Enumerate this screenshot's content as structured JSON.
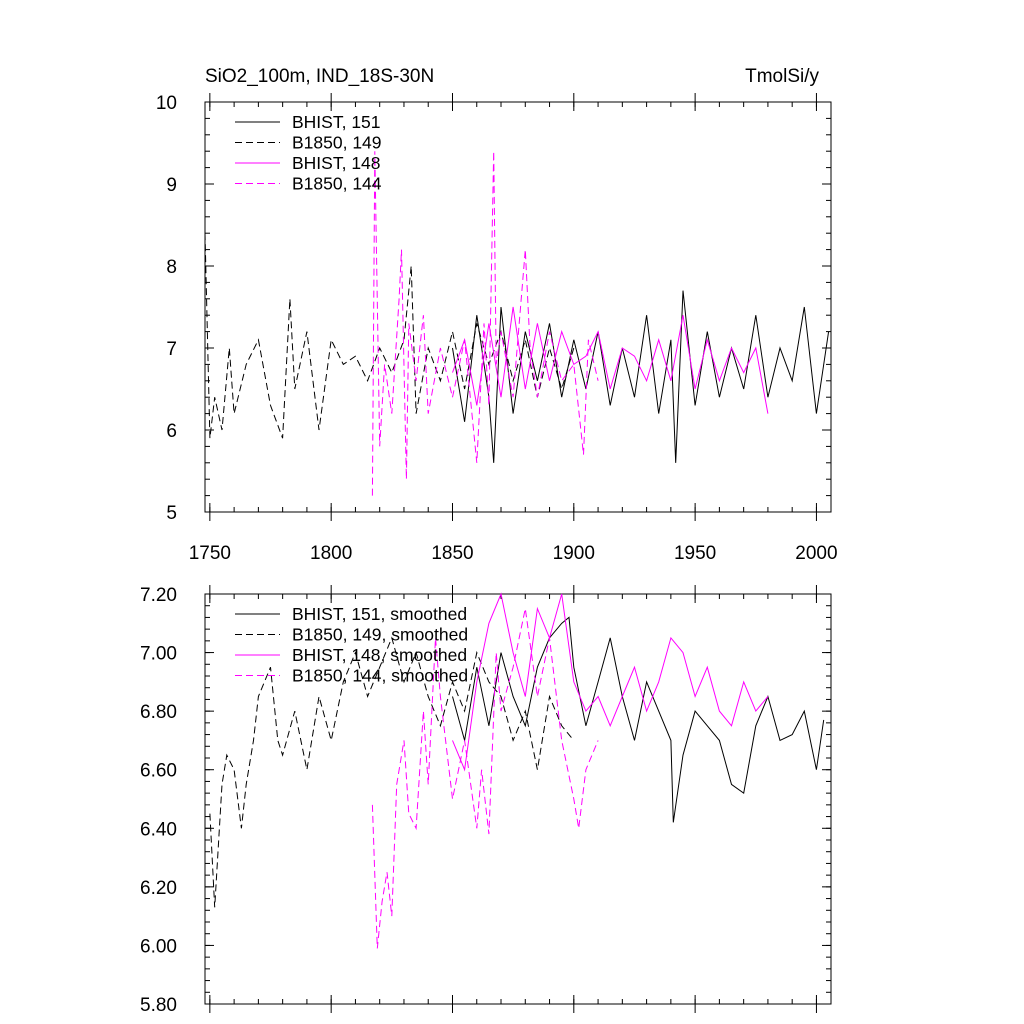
{
  "chart_data": [
    {
      "type": "line",
      "title_left": "SiO2_100m, IND_18S-30N",
      "title_right": "TmolSi/y",
      "xlabel": "",
      "ylabel": "",
      "xlim": [
        1748,
        2006
      ],
      "ylim": [
        5,
        10
      ],
      "xticks": [
        1750,
        1800,
        1850,
        1900,
        1950,
        2000
      ],
      "xtick_labels": [
        "1750",
        "1800",
        "1850",
        "1900",
        "1950",
        "2000"
      ],
      "yticks": [
        5,
        6,
        7,
        8,
        9,
        10
      ],
      "ytick_labels": [
        "5",
        "6",
        "7",
        "8",
        "9",
        "10"
      ],
      "legend_position": "top-left",
      "series": [
        {
          "name": "BHIST, 151",
          "color": "#000000",
          "dash": "solid",
          "x": [
            1850,
            1855,
            1860,
            1865,
            1867,
            1870,
            1875,
            1880,
            1885,
            1890,
            1895,
            1900,
            1905,
            1910,
            1915,
            1920,
            1925,
            1930,
            1935,
            1940,
            1942,
            1945,
            1950,
            1955,
            1960,
            1965,
            1970,
            1975,
            1980,
            1985,
            1990,
            1995,
            2000,
            2005
          ],
          "y": [
            7.0,
            6.1,
            7.4,
            6.4,
            5.6,
            7.5,
            6.2,
            7.2,
            6.6,
            7.3,
            6.4,
            7.1,
            6.5,
            7.2,
            6.3,
            7.0,
            6.4,
            7.4,
            6.2,
            7.1,
            5.6,
            7.7,
            6.3,
            7.2,
            6.4,
            7.0,
            6.5,
            7.4,
            6.4,
            7.0,
            6.6,
            7.5,
            6.2,
            7.2
          ]
        },
        {
          "name": "B1850, 149",
          "color": "#000000",
          "dash": "dashed",
          "x": [
            1748,
            1750,
            1752,
            1755,
            1758,
            1760,
            1765,
            1770,
            1775,
            1780,
            1783,
            1785,
            1790,
            1795,
            1800,
            1805,
            1810,
            1815,
            1820,
            1825,
            1830,
            1833,
            1835,
            1840,
            1845,
            1850,
            1855,
            1860,
            1865,
            1870,
            1875,
            1880,
            1885,
            1890,
            1895,
            1900
          ],
          "y": [
            8.4,
            5.9,
            6.4,
            6.0,
            7.0,
            6.2,
            6.8,
            7.1,
            6.3,
            5.9,
            7.6,
            6.5,
            7.2,
            6.0,
            7.1,
            6.8,
            6.9,
            6.6,
            7.0,
            6.7,
            7.1,
            8.0,
            6.2,
            7.0,
            6.6,
            7.2,
            6.5,
            7.3,
            6.8,
            7.2,
            6.6,
            7.1,
            6.4,
            7.0,
            6.5,
            7.0
          ]
        },
        {
          "name": "BHIST, 148",
          "color": "#ff00ff",
          "dash": "solid",
          "x": [
            1850,
            1855,
            1860,
            1865,
            1870,
            1875,
            1880,
            1885,
            1890,
            1895,
            1900,
            1905,
            1910,
            1915,
            1920,
            1925,
            1930,
            1935,
            1940,
            1945,
            1950,
            1955,
            1960,
            1965,
            1970,
            1975,
            1980
          ],
          "y": [
            6.7,
            7.1,
            6.3,
            7.3,
            6.4,
            7.5,
            6.5,
            7.3,
            6.6,
            7.2,
            6.8,
            6.9,
            7.2,
            6.5,
            7.0,
            6.9,
            6.6,
            7.1,
            6.6,
            7.4,
            6.5,
            7.1,
            6.6,
            7.0,
            6.7,
            7.0,
            6.2
          ]
        },
        {
          "name": "B1850, 144",
          "color": "#ff00ff",
          "dash": "dashed",
          "x": [
            1817,
            1818,
            1820,
            1822,
            1825,
            1828,
            1829,
            1831,
            1832,
            1835,
            1838,
            1840,
            1845,
            1850,
            1855,
            1860,
            1863,
            1865,
            1867,
            1868,
            1870,
            1875,
            1880,
            1882,
            1885,
            1890,
            1895,
            1900,
            1904,
            1906,
            1910
          ],
          "y": [
            5.2,
            9.4,
            5.8,
            6.8,
            6.2,
            7.6,
            8.2,
            5.4,
            7.3,
            6.6,
            7.4,
            6.2,
            7.0,
            6.4,
            7.1,
            5.6,
            7.3,
            6.3,
            9.4,
            6.8,
            7.2,
            6.4,
            8.2,
            7.0,
            6.4,
            7.2,
            6.6,
            6.8,
            5.7,
            7.1,
            6.6
          ]
        }
      ]
    },
    {
      "type": "line",
      "title_left": "",
      "title_right": "",
      "xlabel": "",
      "ylabel": "",
      "xlim": [
        1748,
        2006
      ],
      "ylim": [
        5.8,
        7.2
      ],
      "xticks": [
        1750,
        1800,
        1850,
        1900,
        1950,
        2000
      ],
      "yticks": [
        5.8,
        6.0,
        6.2,
        6.4,
        6.6,
        6.8,
        7.0,
        7.2
      ],
      "ytick_labels": [
        "5.80",
        "6.00",
        "6.20",
        "6.40",
        "6.60",
        "6.80",
        "7.00",
        "7.20"
      ],
      "legend_position": "top-left",
      "series": [
        {
          "name": "BHIST, 151, smoothed",
          "color": "#000000",
          "dash": "solid",
          "x": [
            1850,
            1855,
            1860,
            1865,
            1870,
            1875,
            1880,
            1885,
            1890,
            1895,
            1898,
            1900,
            1905,
            1910,
            1915,
            1920,
            1925,
            1930,
            1935,
            1940,
            1941,
            1945,
            1950,
            1955,
            1960,
            1965,
            1970,
            1975,
            1980,
            1985,
            1990,
            1995,
            2000,
            2003
          ],
          "y": [
            6.85,
            6.7,
            6.95,
            6.75,
            7.0,
            6.85,
            6.75,
            6.95,
            7.05,
            7.1,
            7.12,
            6.95,
            6.75,
            6.9,
            7.05,
            6.85,
            6.7,
            6.9,
            6.8,
            6.7,
            6.42,
            6.65,
            6.8,
            6.75,
            6.7,
            6.55,
            6.52,
            6.75,
            6.85,
            6.7,
            6.72,
            6.8,
            6.6,
            6.77
          ]
        },
        {
          "name": "B1850, 149, smoothed",
          "color": "#000000",
          "dash": "dashed",
          "x": [
            1750,
            1752,
            1755,
            1757,
            1760,
            1763,
            1765,
            1768,
            1770,
            1775,
            1778,
            1780,
            1785,
            1790,
            1795,
            1800,
            1805,
            1810,
            1815,
            1820,
            1825,
            1830,
            1835,
            1840,
            1845,
            1850,
            1855,
            1860,
            1865,
            1870,
            1875,
            1880,
            1885,
            1890,
            1895,
            1900
          ],
          "y": [
            6.45,
            6.13,
            6.55,
            6.65,
            6.6,
            6.4,
            6.55,
            6.7,
            6.85,
            6.95,
            6.7,
            6.65,
            6.8,
            6.6,
            6.85,
            6.7,
            6.9,
            7.0,
            6.85,
            6.95,
            7.05,
            6.9,
            7.0,
            6.85,
            6.75,
            6.9,
            6.8,
            7.0,
            6.9,
            6.85,
            6.7,
            6.8,
            6.6,
            6.85,
            6.75,
            6.7
          ]
        },
        {
          "name": "BHIST, 148, smoothed",
          "color": "#ff00ff",
          "dash": "solid",
          "x": [
            1850,
            1855,
            1860,
            1865,
            1870,
            1875,
            1880,
            1885,
            1890,
            1895,
            1900,
            1905,
            1910,
            1915,
            1920,
            1925,
            1930,
            1935,
            1940,
            1945,
            1950,
            1955,
            1960,
            1965,
            1970,
            1975,
            1980
          ],
          "y": [
            6.7,
            6.6,
            6.9,
            7.1,
            7.2,
            7.0,
            6.85,
            7.15,
            7.05,
            7.2,
            6.9,
            6.8,
            6.85,
            6.75,
            6.85,
            6.95,
            6.8,
            6.9,
            7.05,
            7.0,
            6.85,
            6.95,
            6.8,
            6.75,
            6.9,
            6.8,
            6.85
          ]
        },
        {
          "name": "B1850, 144, smoothed",
          "color": "#ff00ff",
          "dash": "dashed",
          "x": [
            1817,
            1819,
            1821,
            1823,
            1825,
            1827,
            1830,
            1832,
            1835,
            1838,
            1840,
            1843,
            1845,
            1850,
            1855,
            1860,
            1862,
            1865,
            1868,
            1870,
            1875,
            1880,
            1885,
            1890,
            1895,
            1900,
            1902,
            1905,
            1910
          ],
          "y": [
            6.48,
            5.99,
            6.15,
            6.25,
            6.1,
            6.55,
            6.7,
            6.45,
            6.4,
            6.8,
            6.55,
            7.05,
            6.85,
            6.5,
            6.7,
            6.4,
            6.6,
            6.38,
            7.0,
            6.8,
            6.95,
            7.15,
            6.85,
            7.05,
            6.7,
            6.5,
            6.4,
            6.6,
            6.7
          ]
        }
      ]
    }
  ]
}
